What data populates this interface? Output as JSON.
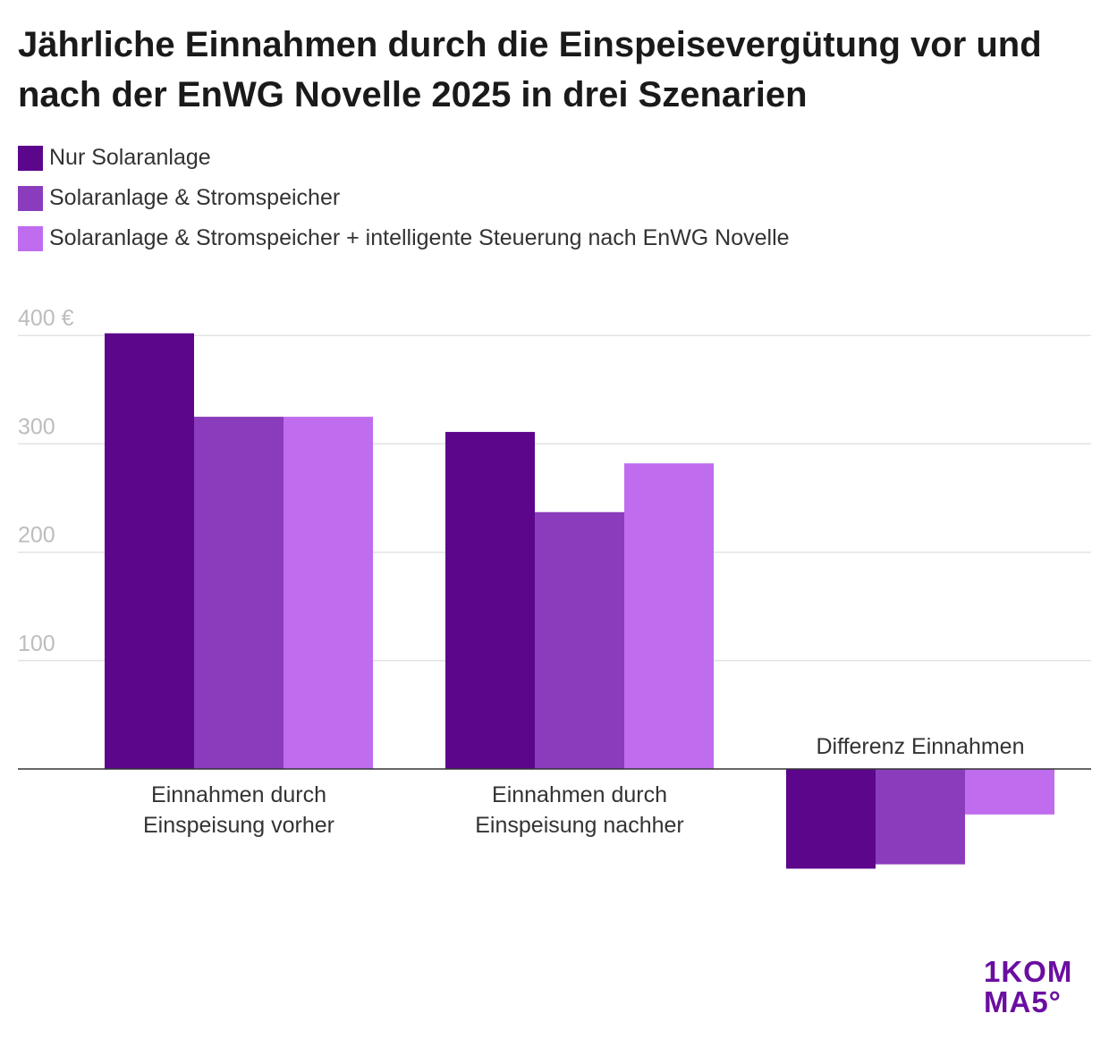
{
  "title": "Jährliche Einnahmen durch die Einspeisevergütung vor und nach der EnWG Novelle 2025 in drei Szenarien",
  "legend": [
    {
      "label": "Nur Solaranlage",
      "color": "#5c068c"
    },
    {
      "label": "Solaranlage & Stromspeicher",
      "color": "#8a3cbd"
    },
    {
      "label": "Solaranlage & Stromspeicher + intelligente Steuerung nach EnWG Novelle",
      "color": "#c06cee"
    }
  ],
  "logo": {
    "line1": "1KOM",
    "line2": "MA5°"
  },
  "chart_data": {
    "type": "bar",
    "categories": [
      "Einnahmen durch Einspeisung vorher",
      "Einnahmen durch Einspeisung nachher",
      "Differenz Einnahmen"
    ],
    "category_lines": [
      [
        "Einnahmen durch",
        "Einspeisung vorher"
      ],
      [
        "Einnahmen durch",
        "Einspeisung nachher"
      ],
      [
        "Differenz Einnahmen"
      ]
    ],
    "series": [
      {
        "name": "Nur Solaranlage",
        "values": [
          402,
          311,
          -92
        ]
      },
      {
        "name": "Solaranlage & Stromspeicher",
        "values": [
          325,
          237,
          -88
        ]
      },
      {
        "name": "Solaranlage & Stromspeicher + intelligente Steuerung nach EnWG Novelle",
        "values": [
          325,
          282,
          -42
        ]
      }
    ],
    "colors": [
      "#5c068c",
      "#8a3cbd",
      "#c06cee"
    ],
    "ylim": [
      -100,
      400
    ],
    "yticks": [
      100,
      200,
      300,
      400
    ],
    "ytick_labels": [
      "100",
      "200",
      "300",
      "400 €"
    ],
    "grid": true,
    "legend_position": "top-left"
  }
}
